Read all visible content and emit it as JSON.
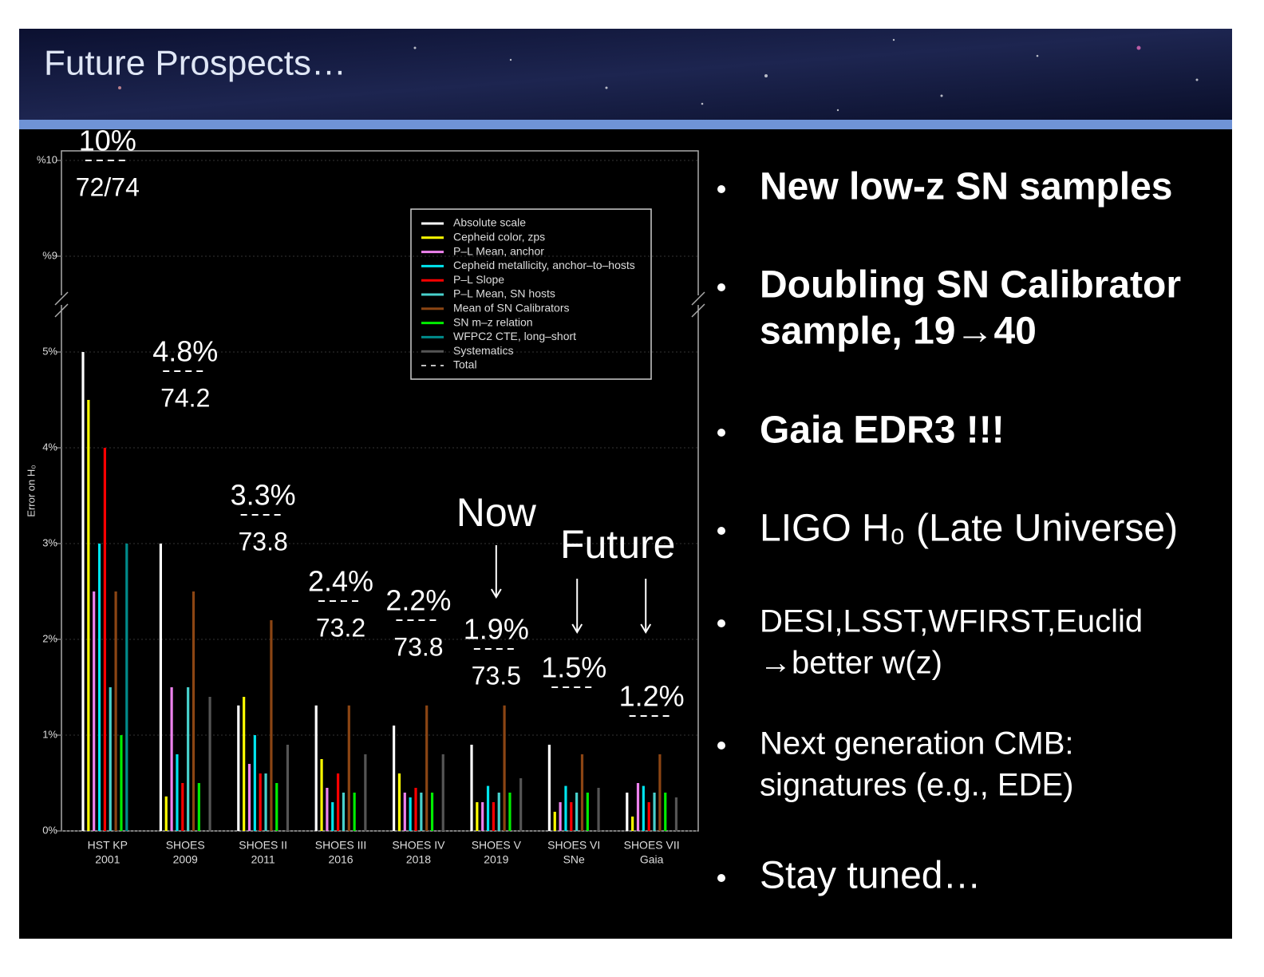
{
  "slide_title": "Future Prospects…",
  "bullets": [
    [
      "New low-z SN samples"
    ],
    [
      "Doubling SN Calibrator",
      "sample, 19→40"
    ],
    [
      "Gaia EDR3 !!!"
    ],
    [
      "LIGO H₀ (Late Universe)"
    ],
    [
      "DESI,LSST,WFIRST,Euclid",
      "→better w(z)"
    ],
    [
      "Next generation CMB:",
      "signatures (e.g., EDE)"
    ],
    [
      "Stay tuned…"
    ]
  ],
  "chart_data": {
    "type": "bar",
    "y_label": "Error on H₀",
    "categories": [
      "HST KP",
      "SHOES",
      "SHOES II",
      "SHOES III",
      "SHOES IV",
      "SHOES V",
      "SHOES VI",
      "SHOES VII"
    ],
    "category_sublabels": [
      "2001",
      "2009",
      "2011",
      "2016",
      "2018",
      "2019",
      "SNe",
      "Gaia"
    ],
    "ylim": [
      0,
      5.5
    ],
    "yticks": [
      {
        "value": 0,
        "label": "0%"
      },
      {
        "value": 1,
        "label": "1%"
      },
      {
        "value": 2,
        "label": "2%"
      },
      {
        "value": 3,
        "label": "3%"
      },
      {
        "value": 4,
        "label": "4%"
      },
      {
        "value": 5,
        "label": "5%"
      }
    ],
    "ylim_upper": [
      8.6,
      10.1
    ],
    "yticks_upper": [
      {
        "value": 9,
        "label": "%9"
      },
      {
        "value": 10,
        "label": "%10"
      }
    ],
    "grid": true,
    "legend": "top-right",
    "series": [
      {
        "name": "Absolute scale",
        "color": "#ffffff",
        "values": [
          5.0,
          3.0,
          1.31,
          1.31,
          1.1,
          0.9,
          0.9,
          0.4
        ]
      },
      {
        "name": "Cepheid color, zps",
        "color": "#ffff00",
        "values": [
          4.5,
          0.36,
          1.4,
          0.75,
          0.6,
          0.3,
          0.2,
          0.15
        ]
      },
      {
        "name": "P–L Mean, anchor",
        "color": "#ee82ee",
        "values": [
          2.5,
          1.5,
          0.7,
          0.45,
          0.4,
          0.3,
          0.3,
          0.5
        ]
      },
      {
        "name": "Cepheid metallicity, anchor–to–hosts",
        "color": "#00e5ee",
        "values": [
          3.0,
          0.8,
          1.0,
          0.3,
          0.35,
          0.47,
          0.47,
          0.47
        ]
      },
      {
        "name": "P–L Slope",
        "color": "#ff0000",
        "values": [
          4.0,
          0.5,
          0.6,
          0.6,
          0.45,
          0.3,
          0.3,
          0.3
        ]
      },
      {
        "name": "P–L Mean, SN hosts",
        "color": "#48d1cc",
        "values": [
          1.5,
          1.5,
          0.6,
          0.4,
          0.4,
          0.4,
          0.4,
          0.4
        ]
      },
      {
        "name": "Mean of SN Calibrators",
        "color": "#8b4513",
        "values": [
          2.5,
          2.5,
          2.2,
          1.31,
          1.31,
          1.31,
          0.8,
          0.8
        ]
      },
      {
        "name": "SN m–z relation",
        "color": "#00ee00",
        "values": [
          1.0,
          0.5,
          0.5,
          0.4,
          0.4,
          0.4,
          0.4,
          0.4
        ]
      },
      {
        "name": "WFPC2 CTE, long–short",
        "color": "#008b8b",
        "values": [
          3.0,
          null,
          null,
          null,
          null,
          null,
          null,
          null
        ]
      },
      {
        "name": "Systematics",
        "color": "#555555",
        "values": [
          null,
          1.4,
          0.9,
          0.8,
          0.8,
          0.55,
          0.45,
          0.35
        ]
      }
    ],
    "total": {
      "name": "Total",
      "color": "#ffffff",
      "values": [
        10,
        4.8,
        3.3,
        2.4,
        2.2,
        1.9,
        1.5,
        1.2
      ],
      "value_labels": [
        "10%",
        "4.8%",
        "3.3%",
        "2.4%",
        "2.2%",
        "1.9%",
        "1.5%",
        "1.2%"
      ]
    },
    "h0_labels": [
      "72/74",
      "74.2",
      "73.8",
      "73.2",
      "73.8",
      "73.5",
      null,
      null
    ],
    "annotations": [
      {
        "text": "Now",
        "category": 5
      },
      {
        "text": "Future",
        "category": 6
      }
    ]
  }
}
